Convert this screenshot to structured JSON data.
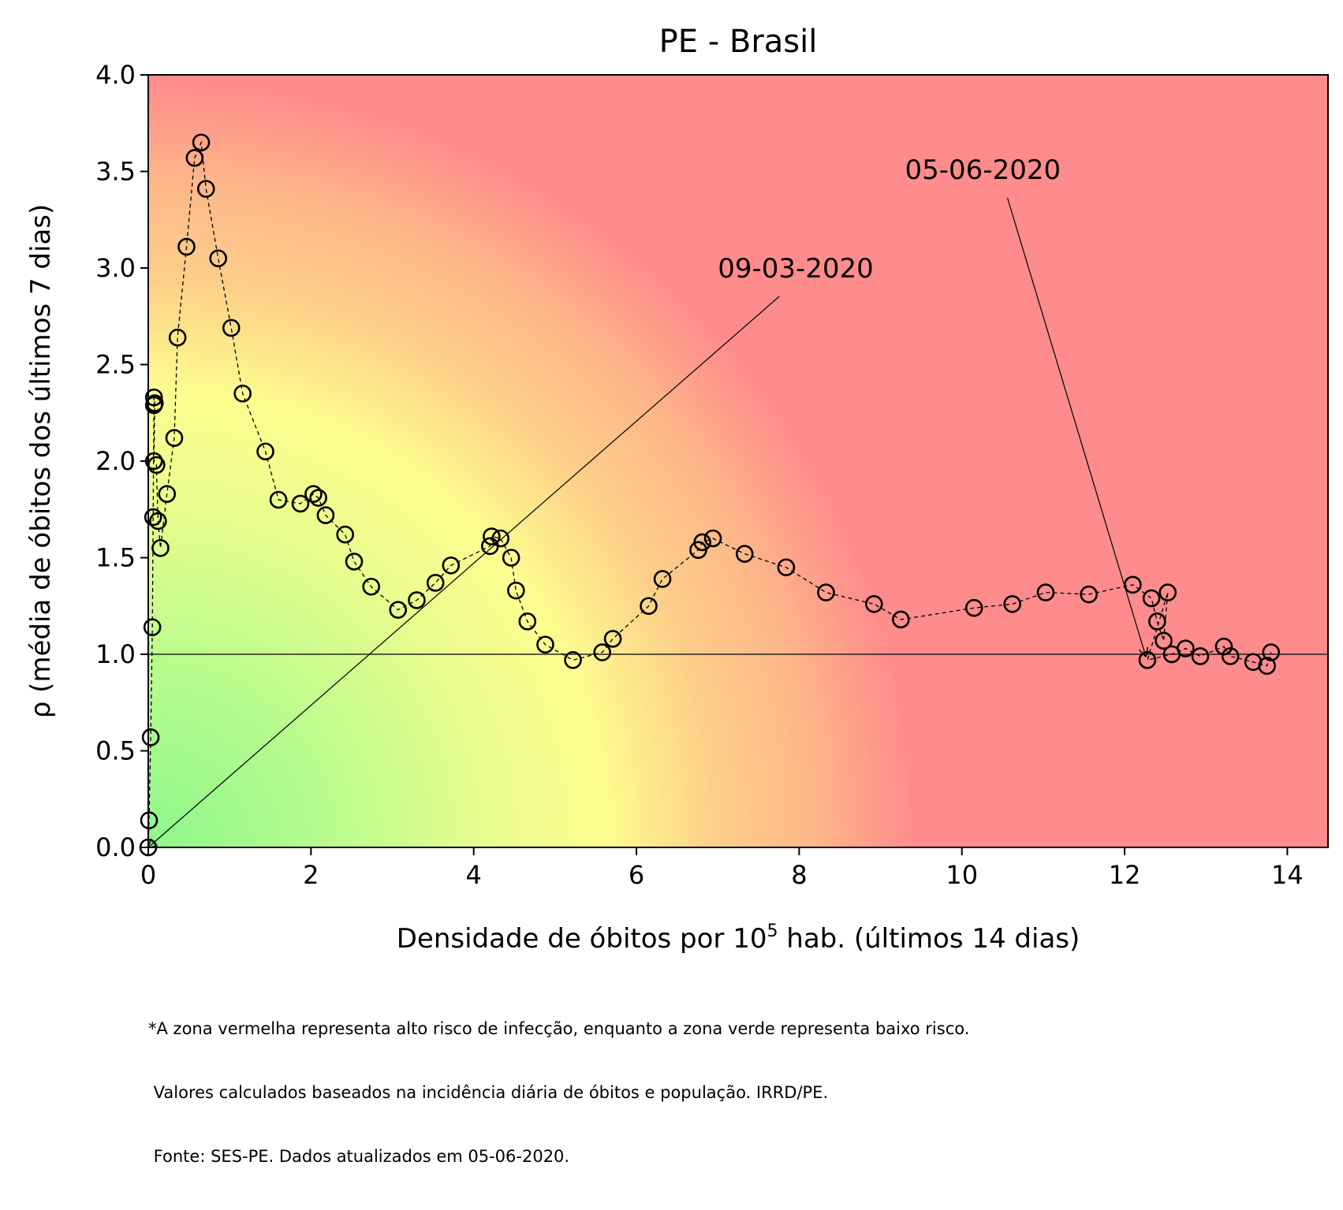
{
  "chart_data": {
    "type": "scatter",
    "title": "PE - Brasil",
    "xlabel_main": "Densidade de óbitos por 10",
    "xlabel_sup": "5",
    "xlabel_tail": " hab. (últimos 14 dias)",
    "ylabel": "ρ (média de óbitos dos últimos 7 dias)",
    "xlim": [
      0,
      14.5
    ],
    "ylim": [
      0,
      4.0
    ],
    "x_ticks": [
      0,
      2,
      4,
      6,
      8,
      10,
      12,
      14
    ],
    "x_tick_labels": [
      "0",
      "2",
      "4",
      "6",
      "8",
      "10",
      "12",
      "14"
    ],
    "y_ticks": [
      0,
      0.5,
      1.0,
      1.5,
      2.0,
      2.5,
      3.0,
      3.5,
      4.0
    ],
    "y_tick_labels": [
      "0.0",
      "0.5",
      "1.0",
      "1.5",
      "2.0",
      "2.5",
      "3.0",
      "3.5",
      "4.0"
    ],
    "reference_line_y": 1.0,
    "grid": false,
    "background": "risk gradient: green (low) to yellow to red (high)",
    "colors": {
      "green": "#8ef78c",
      "yellow": "#fdfd8f",
      "orange": "#fdb889",
      "red": "#ff8c8c",
      "marker_edge": "#000000"
    },
    "points": [
      [
        0.0,
        0.0
      ],
      [
        0.01,
        0.14
      ],
      [
        0.03,
        0.57
      ],
      [
        0.05,
        1.14
      ],
      [
        0.06,
        1.71
      ],
      [
        0.07,
        2.29
      ],
      [
        0.07,
        2.33
      ],
      [
        0.08,
        2.3
      ],
      [
        0.07,
        2.0
      ],
      [
        0.1,
        1.98
      ],
      [
        0.12,
        1.69
      ],
      [
        0.15,
        1.55
      ],
      [
        0.23,
        1.83
      ],
      [
        0.32,
        2.12
      ],
      [
        0.36,
        2.64
      ],
      [
        0.47,
        3.11
      ],
      [
        0.57,
        3.57
      ],
      [
        0.65,
        3.65
      ],
      [
        0.71,
        3.41
      ],
      [
        0.86,
        3.05
      ],
      [
        1.02,
        2.69
      ],
      [
        1.16,
        2.35
      ],
      [
        1.44,
        2.05
      ],
      [
        1.6,
        1.8
      ],
      [
        1.87,
        1.78
      ],
      [
        2.03,
        1.83
      ],
      [
        2.09,
        1.81
      ],
      [
        2.18,
        1.72
      ],
      [
        2.42,
        1.62
      ],
      [
        2.53,
        1.48
      ],
      [
        2.74,
        1.35
      ],
      [
        3.07,
        1.23
      ],
      [
        3.3,
        1.28
      ],
      [
        3.53,
        1.37
      ],
      [
        3.72,
        1.46
      ],
      [
        4.2,
        1.56
      ],
      [
        4.22,
        1.61
      ],
      [
        4.33,
        1.6
      ],
      [
        4.46,
        1.5
      ],
      [
        4.52,
        1.33
      ],
      [
        4.66,
        1.17
      ],
      [
        4.88,
        1.05
      ],
      [
        5.22,
        0.97
      ],
      [
        5.58,
        1.01
      ],
      [
        5.71,
        1.08
      ],
      [
        6.15,
        1.25
      ],
      [
        6.32,
        1.39
      ],
      [
        6.76,
        1.54
      ],
      [
        6.81,
        1.58
      ],
      [
        6.94,
        1.6
      ],
      [
        7.33,
        1.52
      ],
      [
        7.84,
        1.45
      ],
      [
        8.33,
        1.32
      ],
      [
        8.92,
        1.26
      ],
      [
        9.25,
        1.18
      ],
      [
        10.15,
        1.24
      ],
      [
        10.62,
        1.26
      ],
      [
        11.03,
        1.32
      ],
      [
        11.56,
        1.31
      ],
      [
        12.1,
        1.36
      ],
      [
        12.33,
        1.29
      ],
      [
        12.4,
        1.17
      ],
      [
        12.48,
        1.07
      ],
      [
        12.53,
        1.32
      ],
      [
        12.28,
        0.97
      ],
      [
        12.58,
        1.0
      ],
      [
        12.75,
        1.03
      ],
      [
        12.93,
        0.99
      ],
      [
        13.22,
        1.04
      ],
      [
        13.3,
        0.99
      ],
      [
        13.58,
        0.96
      ],
      [
        13.75,
        0.94
      ],
      [
        13.8,
        1.01
      ]
    ],
    "annotations": [
      {
        "text": "09-03-2020",
        "text_xy": [
          7.0,
          3.0
        ],
        "target_xy": [
          0.0,
          0.0
        ]
      },
      {
        "text": "05-06-2020",
        "text_xy": [
          9.3,
          3.51
        ],
        "target_xy": [
          12.26,
          0.99
        ]
      }
    ]
  },
  "footnote": {
    "line1": "*A zona vermelha representa alto risco de infecção, enquanto a zona verde representa baixo risco.",
    "line2": " Valores calculados baseados na incidência diária de óbitos e população. IRRD/PE.",
    "line3": " Fonte: SES-PE. Dados atualizados em 05-06-2020."
  }
}
